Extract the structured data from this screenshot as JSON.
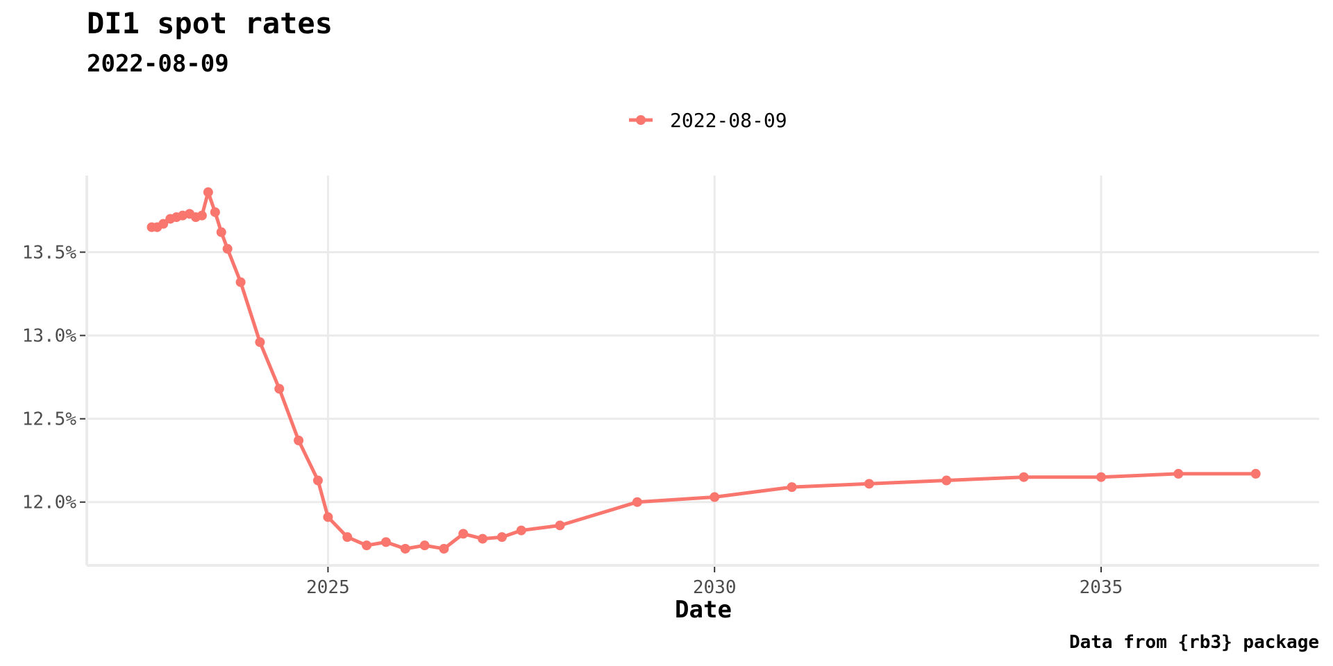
{
  "chart_data": {
    "type": "line",
    "title": "DI1 spot rates",
    "subtitle": "2022-08-09",
    "xlabel": "Date",
    "ylabel": "",
    "caption": "Data from {rb3} package",
    "legend": {
      "position": "top",
      "entries": [
        "2022-08-09"
      ]
    },
    "grid": true,
    "x_ticks": [
      {
        "label": "2025",
        "value": 2025.0
      },
      {
        "label": "2030",
        "value": 2030.0
      },
      {
        "label": "2035",
        "value": 2035.0
      }
    ],
    "y_ticks": [
      {
        "label": "12.0%",
        "value": 12.0
      },
      {
        "label": "12.5%",
        "value": 12.5
      },
      {
        "label": "13.0%",
        "value": 13.0
      },
      {
        "label": "13.5%",
        "value": 13.5
      }
    ],
    "xlim": [
      2021.88,
      2037.82
    ],
    "ylim": [
      11.62,
      13.96
    ],
    "series": [
      {
        "name": "2022-08-09",
        "color": "#f8766d",
        "x": [
          2022.72,
          2022.79,
          2022.87,
          2022.96,
          2023.04,
          2023.12,
          2023.21,
          2023.29,
          2023.37,
          2023.45,
          2023.54,
          2023.62,
          2023.7,
          2023.87,
          2024.12,
          2024.37,
          2024.62,
          2024.87,
          2025.0,
          2025.25,
          2025.5,
          2025.75,
          2026.0,
          2026.25,
          2026.5,
          2026.75,
          2027.0,
          2027.25,
          2027.5,
          2028.0,
          2029.0,
          2030.0,
          2031.0,
          2032.0,
          2033.0,
          2034.0,
          2035.0,
          2036.0,
          2037.0
        ],
        "y": [
          13.65,
          13.65,
          13.67,
          13.7,
          13.71,
          13.72,
          13.73,
          13.71,
          13.72,
          13.86,
          13.74,
          13.62,
          13.52,
          13.32,
          12.96,
          12.68,
          12.37,
          12.13,
          11.91,
          11.79,
          11.74,
          11.76,
          11.72,
          11.74,
          11.72,
          11.81,
          11.78,
          11.79,
          11.83,
          11.86,
          12.0,
          12.03,
          12.09,
          12.11,
          12.13,
          12.15,
          12.15,
          12.17,
          12.17
        ]
      }
    ]
  }
}
